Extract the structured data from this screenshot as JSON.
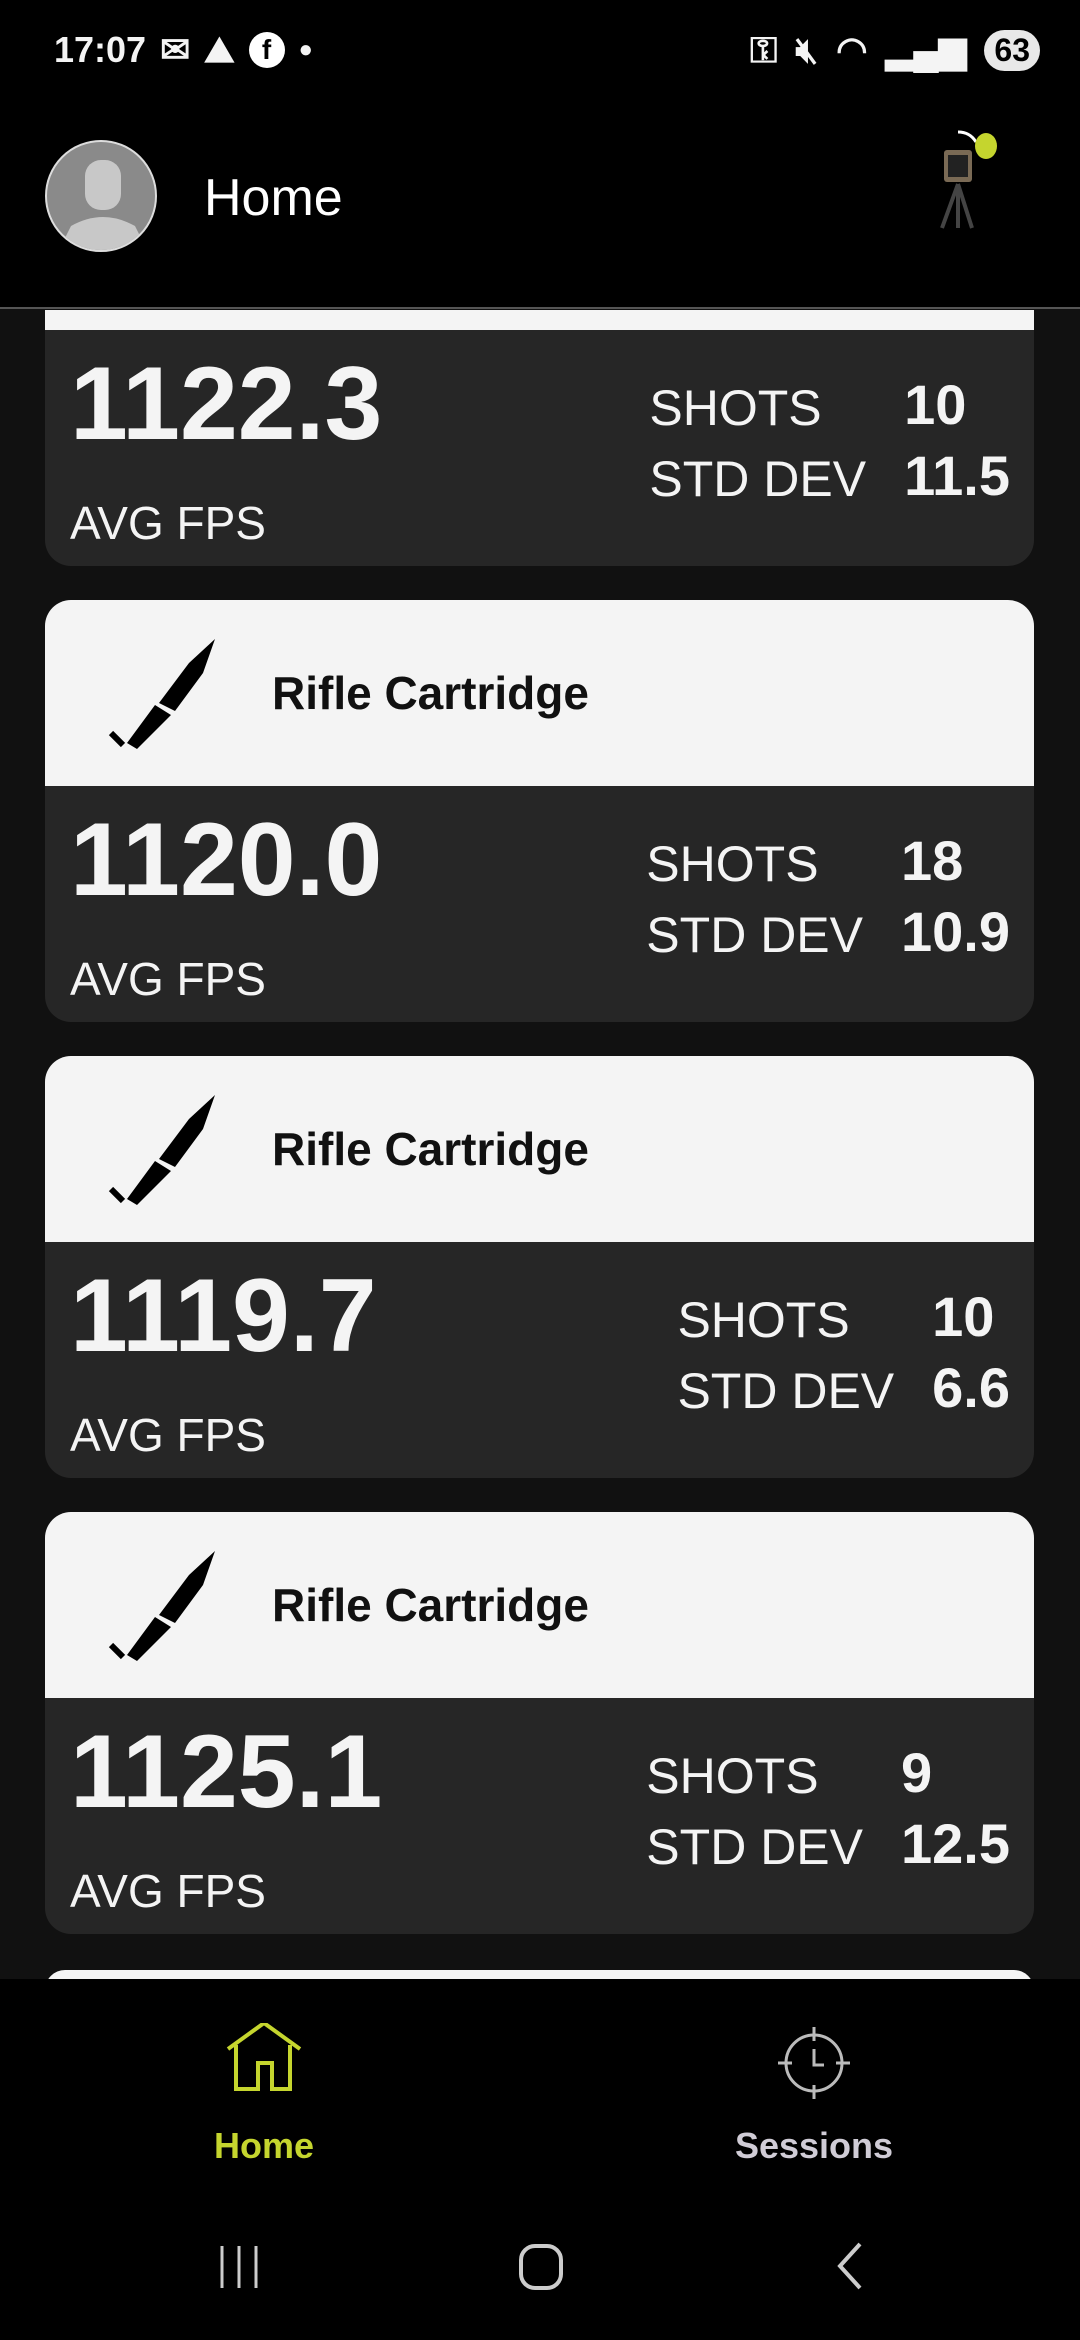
{
  "status_bar": {
    "time": "17:07",
    "battery": "63",
    "icons": [
      "mail-icon",
      "app-icon",
      "facebook-icon",
      "dot-icon",
      "key-icon",
      "mute-icon",
      "wifi-icon",
      "signal-icon"
    ]
  },
  "header": {
    "title": "Home",
    "icons": [
      "avatar",
      "device-icon"
    ],
    "accent": "#c5d52e"
  },
  "sessions": [
    {
      "name": "",
      "avg_fps": "1122.3",
      "avg_label": "AVG FPS",
      "shots_label": "SHOTS",
      "shots": "10",
      "std_label": "STD DEV",
      "std_dev": "11.5"
    },
    {
      "name": "Rifle Cartridge",
      "avg_fps": "1120.0",
      "avg_label": "AVG FPS",
      "shots_label": "SHOTS",
      "shots": "18",
      "std_label": "STD DEV",
      "std_dev": "10.9"
    },
    {
      "name": "Rifle Cartridge",
      "avg_fps": "1119.7",
      "avg_label": "AVG FPS",
      "shots_label": "SHOTS",
      "shots": "10",
      "std_label": "STD DEV",
      "std_dev": "6.6"
    },
    {
      "name": "Rifle Cartridge",
      "avg_fps": "1125.1",
      "avg_label": "AVG FPS",
      "shots_label": "SHOTS",
      "shots": "9",
      "std_label": "STD DEV",
      "std_dev": "12.5"
    }
  ],
  "bottom_nav": {
    "items": [
      {
        "label": "Home",
        "icon": "home-icon",
        "active": true
      },
      {
        "label": "Sessions",
        "icon": "crosshair-icon",
        "active": false
      }
    ]
  }
}
